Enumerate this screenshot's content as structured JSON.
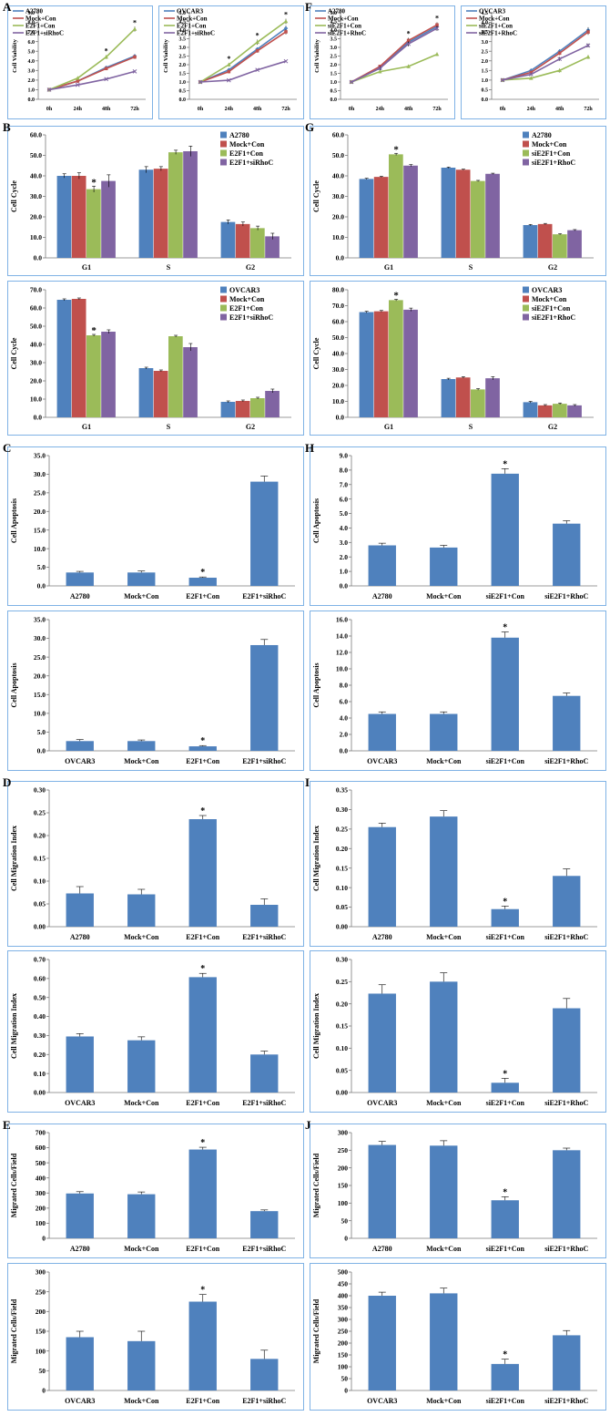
{
  "panel_labels": [
    "A",
    "B",
    "C",
    "D",
    "E",
    "F",
    "G",
    "H",
    "I",
    "J"
  ],
  "colors": {
    "blue": "#4f81bd",
    "red": "#c0504d",
    "green": "#9bbb59",
    "purple": "#8064a2",
    "frame": "#7fb2e5"
  },
  "chart_data": [
    {
      "id": "A1",
      "panel": "A",
      "type": "line",
      "ylabel": "Cell Viability",
      "ylim": [
        0,
        9
      ],
      "ystep": 1,
      "ydec": 1,
      "categories": [
        "0h",
        "24h",
        "48h",
        "72h"
      ],
      "legend": "top-left",
      "stars": [
        2,
        3
      ],
      "series": [
        {
          "name": "A2780",
          "color": "#4f81bd",
          "values": [
            1.0,
            1.9,
            3.3,
            4.5
          ],
          "err": [
            0.05,
            0.1,
            0.15,
            0.2
          ]
        },
        {
          "name": "Mock+Con",
          "color": "#c0504d",
          "values": [
            1.0,
            1.9,
            3.2,
            4.4
          ],
          "err": [
            0.05,
            0.1,
            0.15,
            0.2
          ]
        },
        {
          "name": "E2F1+Con",
          "color": "#9bbb59",
          "values": [
            1.0,
            2.2,
            4.4,
            7.3
          ],
          "err": [
            0.05,
            0.1,
            0.2,
            0.25
          ]
        },
        {
          "name": "E2F1+siRhoC",
          "color": "#8064a2",
          "values": [
            1.0,
            1.5,
            2.1,
            2.9
          ],
          "err": [
            0.05,
            0.05,
            0.1,
            0.1
          ]
        }
      ]
    },
    {
      "id": "A2",
      "panel": "",
      "type": "line",
      "ylabel": "Cell Viability",
      "ylim": [
        0,
        5
      ],
      "ystep": 0.5,
      "ydec": 1,
      "categories": [
        "0h",
        "24h",
        "48h",
        "72h"
      ],
      "legend": "top-left",
      "stars": [
        1,
        2,
        3
      ],
      "series": [
        {
          "name": "OVCAR3",
          "color": "#4f81bd",
          "values": [
            1.0,
            1.7,
            2.9,
            4.1
          ],
          "err": [
            0.05,
            0.1,
            0.1,
            0.15
          ]
        },
        {
          "name": "Mock+Con",
          "color": "#c0504d",
          "values": [
            1.0,
            1.6,
            2.8,
            3.9
          ],
          "err": [
            0.05,
            0.1,
            0.1,
            0.15
          ]
        },
        {
          "name": "E2F1+Con",
          "color": "#9bbb59",
          "values": [
            1.0,
            2.0,
            3.3,
            4.5
          ],
          "err": [
            0.05,
            0.1,
            0.15,
            0.15
          ]
        },
        {
          "name": "E2F1+siRhoC",
          "color": "#8064a2",
          "values": [
            1.0,
            1.1,
            1.7,
            2.2
          ],
          "err": [
            0.05,
            0.05,
            0.05,
            0.05
          ]
        }
      ]
    },
    {
      "id": "F1",
      "panel": "F",
      "type": "line",
      "ylabel": "Cell Viability",
      "ylim": [
        0,
        5
      ],
      "ystep": 0.5,
      "ydec": 1,
      "categories": [
        "0h",
        "24h",
        "48h",
        "72h"
      ],
      "legend": "top-left",
      "stars": [
        2,
        3
      ],
      "series": [
        {
          "name": "A2780",
          "color": "#4f81bd",
          "values": [
            1.0,
            1.8,
            3.3,
            4.2
          ],
          "err": [
            0.05,
            0.1,
            0.15,
            0.15
          ]
        },
        {
          "name": "Mock+Con",
          "color": "#c0504d",
          "values": [
            1.0,
            1.9,
            3.4,
            4.3
          ],
          "err": [
            0.05,
            0.1,
            0.15,
            0.15
          ]
        },
        {
          "name": "siE2F1+Con",
          "color": "#9bbb59",
          "values": [
            1.0,
            1.6,
            1.9,
            2.6
          ],
          "err": [
            0.05,
            0.1,
            0.1,
            0.1
          ]
        },
        {
          "name": "siE2F1+RhoC",
          "color": "#8064a2",
          "values": [
            1.0,
            1.8,
            3.2,
            4.1
          ],
          "err": [
            0.05,
            0.1,
            0.15,
            0.15
          ]
        }
      ]
    },
    {
      "id": "F2",
      "panel": "",
      "type": "line",
      "ylabel": "",
      "ylim": [
        0,
        4.5
      ],
      "ystep": 0.5,
      "ydec": 1,
      "categories": [
        "0h",
        "24h",
        "48h",
        "72h"
      ],
      "legend": "top-left",
      "stars": [],
      "series": [
        {
          "name": "OVCAR3",
          "color": "#4f81bd",
          "values": [
            1.0,
            1.5,
            2.5,
            3.6
          ],
          "err": [
            0.05,
            0.05,
            0.1,
            0.15
          ]
        },
        {
          "name": "Mock+Con",
          "color": "#c0504d",
          "values": [
            1.0,
            1.4,
            2.4,
            3.5
          ],
          "err": [
            0.05,
            0.05,
            0.1,
            0.15
          ]
        },
        {
          "name": "siE2F1+Con",
          "color": "#9bbb59",
          "values": [
            1.0,
            1.1,
            1.5,
            2.2
          ],
          "err": [
            0.05,
            0.05,
            0.1,
            0.1
          ]
        },
        {
          "name": "siE2F1+RhoC",
          "color": "#8064a2",
          "values": [
            1.0,
            1.3,
            2.1,
            2.8
          ],
          "err": [
            0.05,
            0.05,
            0.1,
            0.1
          ]
        }
      ]
    },
    {
      "id": "B1",
      "panel": "B",
      "type": "grouped-bar",
      "ylabel": "Cell Cycle",
      "ylim": [
        0,
        60
      ],
      "ystep": 10,
      "ydec": 1,
      "categories": [
        "G1",
        "S",
        "G2"
      ],
      "legend": "top-right",
      "star_at": [
        0,
        2
      ],
      "series": [
        {
          "name": "A2780",
          "color": "#4f81bd",
          "values": [
            40,
            43,
            17.5
          ],
          "err": [
            1,
            1.5,
            1
          ]
        },
        {
          "name": "Mock+Con",
          "color": "#c0504d",
          "values": [
            40,
            43.5,
            16.5
          ],
          "err": [
            1.5,
            1,
            1
          ]
        },
        {
          "name": "E2F1+Con",
          "color": "#9bbb59",
          "values": [
            33.5,
            51.5,
            14.5
          ],
          "err": [
            1.5,
            1,
            1
          ]
        },
        {
          "name": "E2F1+siRhoC",
          "color": "#8064a2",
          "values": [
            37.5,
            52,
            10.5
          ],
          "err": [
            3,
            2.5,
            1.5
          ]
        }
      ]
    },
    {
      "id": "B2",
      "panel": "",
      "type": "grouped-bar",
      "ylabel": "Cell Cycle",
      "ylim": [
        0,
        70
      ],
      "ystep": 10,
      "ydec": 1,
      "categories": [
        "G1",
        "S",
        "G2"
      ],
      "legend": "top-right",
      "star_at": [
        0,
        2
      ],
      "series": [
        {
          "name": "OVCAR3",
          "color": "#4f81bd",
          "values": [
            64.5,
            27,
            8.5
          ],
          "err": [
            0.5,
            0.5,
            0.5
          ]
        },
        {
          "name": "Mock+Con",
          "color": "#c0504d",
          "values": [
            65,
            25.5,
            9
          ],
          "err": [
            0.5,
            0.5,
            0.5
          ]
        },
        {
          "name": "E2F1+Con",
          "color": "#9bbb59",
          "values": [
            45,
            44.5,
            10.5
          ],
          "err": [
            0.5,
            0.5,
            0.5
          ]
        },
        {
          "name": "E2F1+siRhoC",
          "color": "#8064a2",
          "values": [
            47,
            38.5,
            14.5
          ],
          "err": [
            1,
            2,
            1
          ]
        }
      ]
    },
    {
      "id": "G1",
      "panel": "G",
      "type": "grouped-bar",
      "ylabel": "Cell Cycle",
      "ylim": [
        0,
        60
      ],
      "ystep": 10,
      "ydec": 1,
      "categories": [
        "G1",
        "S",
        "G2"
      ],
      "legend": "top-right",
      "star_at": [
        0,
        2
      ],
      "series": [
        {
          "name": "A2780",
          "color": "#4f81bd",
          "values": [
            38.5,
            44,
            16
          ],
          "err": [
            0.3,
            0.3,
            0.3
          ]
        },
        {
          "name": "Mock+Con",
          "color": "#c0504d",
          "values": [
            39.5,
            43,
            16.5
          ],
          "err": [
            0.3,
            0.3,
            0.3
          ]
        },
        {
          "name": "siE2F1+Con",
          "color": "#9bbb59",
          "values": [
            50.5,
            37.5,
            11.5
          ],
          "err": [
            0.5,
            0.3,
            0.3
          ]
        },
        {
          "name": "siE2F1+RhoC",
          "color": "#8064a2",
          "values": [
            45,
            41,
            13.5
          ],
          "err": [
            0.5,
            0.3,
            0.3
          ]
        }
      ]
    },
    {
      "id": "G2",
      "panel": "",
      "type": "grouped-bar",
      "ylabel": "Cell Cycle",
      "ylim": [
        0,
        80
      ],
      "ystep": 10,
      "ydec": 1,
      "categories": [
        "G1",
        "S",
        "G2"
      ],
      "legend": "top-right",
      "star_at": [
        0,
        2
      ],
      "series": [
        {
          "name": "OVCAR3",
          "color": "#4f81bd",
          "values": [
            66,
            24,
            9.5
          ],
          "err": [
            0.5,
            0.5,
            0.5
          ]
        },
        {
          "name": "Mock+Con",
          "color": "#c0504d",
          "values": [
            66.5,
            25,
            7.5
          ],
          "err": [
            0.5,
            0.5,
            0.5
          ]
        },
        {
          "name": "siE2F1+Con",
          "color": "#9bbb59",
          "values": [
            73.5,
            17.5,
            8.5
          ],
          "err": [
            0.5,
            0.5,
            0.5
          ]
        },
        {
          "name": "siE2F1+RhoC",
          "color": "#8064a2",
          "values": [
            67.5,
            24.5,
            7.5
          ],
          "err": [
            1,
            1,
            0.5
          ]
        }
      ]
    },
    {
      "id": "C1",
      "panel": "C",
      "type": "bar",
      "ylabel": "Cell Apoptosis",
      "ylim": [
        0,
        35
      ],
      "ystep": 5,
      "ydec": 1,
      "categories": [
        "A2780",
        "Mock+Con",
        "E2F1+Con",
        "E2F1+siRhoC"
      ],
      "values": [
        3.6,
        3.6,
        2.2,
        28
      ],
      "err": [
        0.3,
        0.4,
        0.2,
        1.5
      ],
      "star_index": 2
    },
    {
      "id": "C2",
      "panel": "",
      "type": "bar",
      "ylabel": "Cell Apoptosis",
      "ylim": [
        0,
        35
      ],
      "ystep": 5,
      "ydec": 1,
      "categories": [
        "OVCAR3",
        "Mock+Con",
        "E2F1+Con",
        "E2F1+siRhoC"
      ],
      "values": [
        2.6,
        2.6,
        1.2,
        28.2
      ],
      "err": [
        0.4,
        0.3,
        0.2,
        1.5
      ],
      "star_index": 2
    },
    {
      "id": "H1",
      "panel": "H",
      "type": "bar",
      "ylabel": "Cell Apoptosis",
      "ylim": [
        0,
        9
      ],
      "ystep": 1,
      "ydec": 1,
      "categories": [
        "A2780",
        "Mock+Con",
        "siE2F1+Con",
        "siE2F1+RhoC"
      ],
      "values": [
        2.8,
        2.65,
        7.75,
        4.3
      ],
      "err": [
        0.15,
        0.15,
        0.35,
        0.2
      ],
      "star_index": 2
    },
    {
      "id": "H2",
      "panel": "",
      "type": "bar",
      "ylabel": "Cell Apoptosis",
      "ylim": [
        0,
        16
      ],
      "ystep": 2,
      "ydec": 1,
      "categories": [
        "OVCAR3",
        "Mock+Con",
        "siE2F1+Con",
        "siE2F1+RhoC"
      ],
      "values": [
        4.5,
        4.5,
        13.8,
        6.7
      ],
      "err": [
        0.25,
        0.25,
        0.7,
        0.35
      ],
      "star_index": 2
    },
    {
      "id": "D1",
      "panel": "D",
      "type": "bar",
      "ylabel": "Cell Migration Index",
      "ylim": [
        0,
        0.3
      ],
      "ystep": 0.05,
      "ydec": 2,
      "categories": [
        "A2780",
        "Mock+Con",
        "E2F1+Con",
        "E2F1+siRhoC"
      ],
      "values": [
        0.073,
        0.071,
        0.236,
        0.048
      ],
      "err": [
        0.015,
        0.011,
        0.008,
        0.013
      ],
      "star_index": 2
    },
    {
      "id": "D2",
      "panel": "",
      "type": "bar",
      "ylabel": "Cell Migration Index",
      "ylim": [
        0,
        0.7
      ],
      "ystep": 0.1,
      "ydec": 2,
      "categories": [
        "OVCAR3",
        "Mock+Con",
        "E2F1+Con",
        "E2F1+siRhoC"
      ],
      "values": [
        0.295,
        0.275,
        0.607,
        0.2
      ],
      "err": [
        0.015,
        0.018,
        0.02,
        0.018
      ],
      "star_index": 2
    },
    {
      "id": "I1",
      "panel": "I",
      "type": "bar",
      "ylabel": "Cell Migration Index",
      "ylim": [
        0,
        0.35
      ],
      "ystep": 0.05,
      "ydec": 2,
      "categories": [
        "A2780",
        "Mock+Con",
        "siE2F1+Con",
        "siE2F1+RhoC"
      ],
      "values": [
        0.255,
        0.282,
        0.045,
        0.13
      ],
      "err": [
        0.01,
        0.015,
        0.008,
        0.018
      ],
      "star_index": 2
    },
    {
      "id": "I2",
      "panel": "",
      "type": "bar",
      "ylabel": "Cell Migration Index",
      "ylim": [
        0,
        0.3
      ],
      "ystep": 0.05,
      "ydec": 2,
      "categories": [
        "OVCAR3",
        "Mock+Con",
        "siE2F1+Con",
        "siE2F1+RhoC"
      ],
      "values": [
        0.223,
        0.25,
        0.022,
        0.19
      ],
      "err": [
        0.02,
        0.02,
        0.01,
        0.022
      ],
      "star_index": 2
    },
    {
      "id": "E1",
      "panel": "E",
      "type": "bar",
      "ylabel": "Migrated Cells/Field",
      "ylim": [
        0,
        700
      ],
      "ystep": 100,
      "ydec": 0,
      "categories": [
        "A2780",
        "Mock+Con",
        "E2F1+Con",
        "E2F1+siRhoC"
      ],
      "values": [
        297,
        292,
        588,
        180
      ],
      "err": [
        12,
        15,
        15,
        8
      ],
      "star_index": 2
    },
    {
      "id": "E2",
      "panel": "",
      "type": "bar",
      "ylabel": "Migrated Cells/Field",
      "ylim": [
        0,
        300
      ],
      "ystep": 50,
      "ydec": 0,
      "categories": [
        "OVCAR3",
        "Mock+Con",
        "E2F1+Con",
        "E2F1+siRhoC"
      ],
      "values": [
        135,
        125,
        225,
        80
      ],
      "err": [
        15,
        25,
        18,
        22
      ],
      "star_index": 2
    },
    {
      "id": "J1",
      "panel": "J",
      "type": "bar",
      "ylabel": "Migrated Cells/Field",
      "ylim": [
        0,
        300
      ],
      "ystep": 50,
      "ydec": 0,
      "categories": [
        "A2780",
        "Mock+Con",
        "siE2F1+Con",
        "siE2F1+RhoC"
      ],
      "values": [
        265,
        263,
        108,
        250
      ],
      "err": [
        10,
        14,
        10,
        6
      ],
      "star_index": 2
    },
    {
      "id": "J2",
      "panel": "",
      "type": "bar",
      "ylabel": "Migrated Cells/Field",
      "ylim": [
        0,
        500
      ],
      "ystep": 50,
      "ydec": 0,
      "categories": [
        "OVCAR3",
        "Mock+Con",
        "siE2F1+Con",
        "siE2F1+RhoC"
      ],
      "values": [
        400,
        410,
        112,
        233
      ],
      "err": [
        15,
        22,
        20,
        20
      ],
      "star_index": 2
    }
  ]
}
